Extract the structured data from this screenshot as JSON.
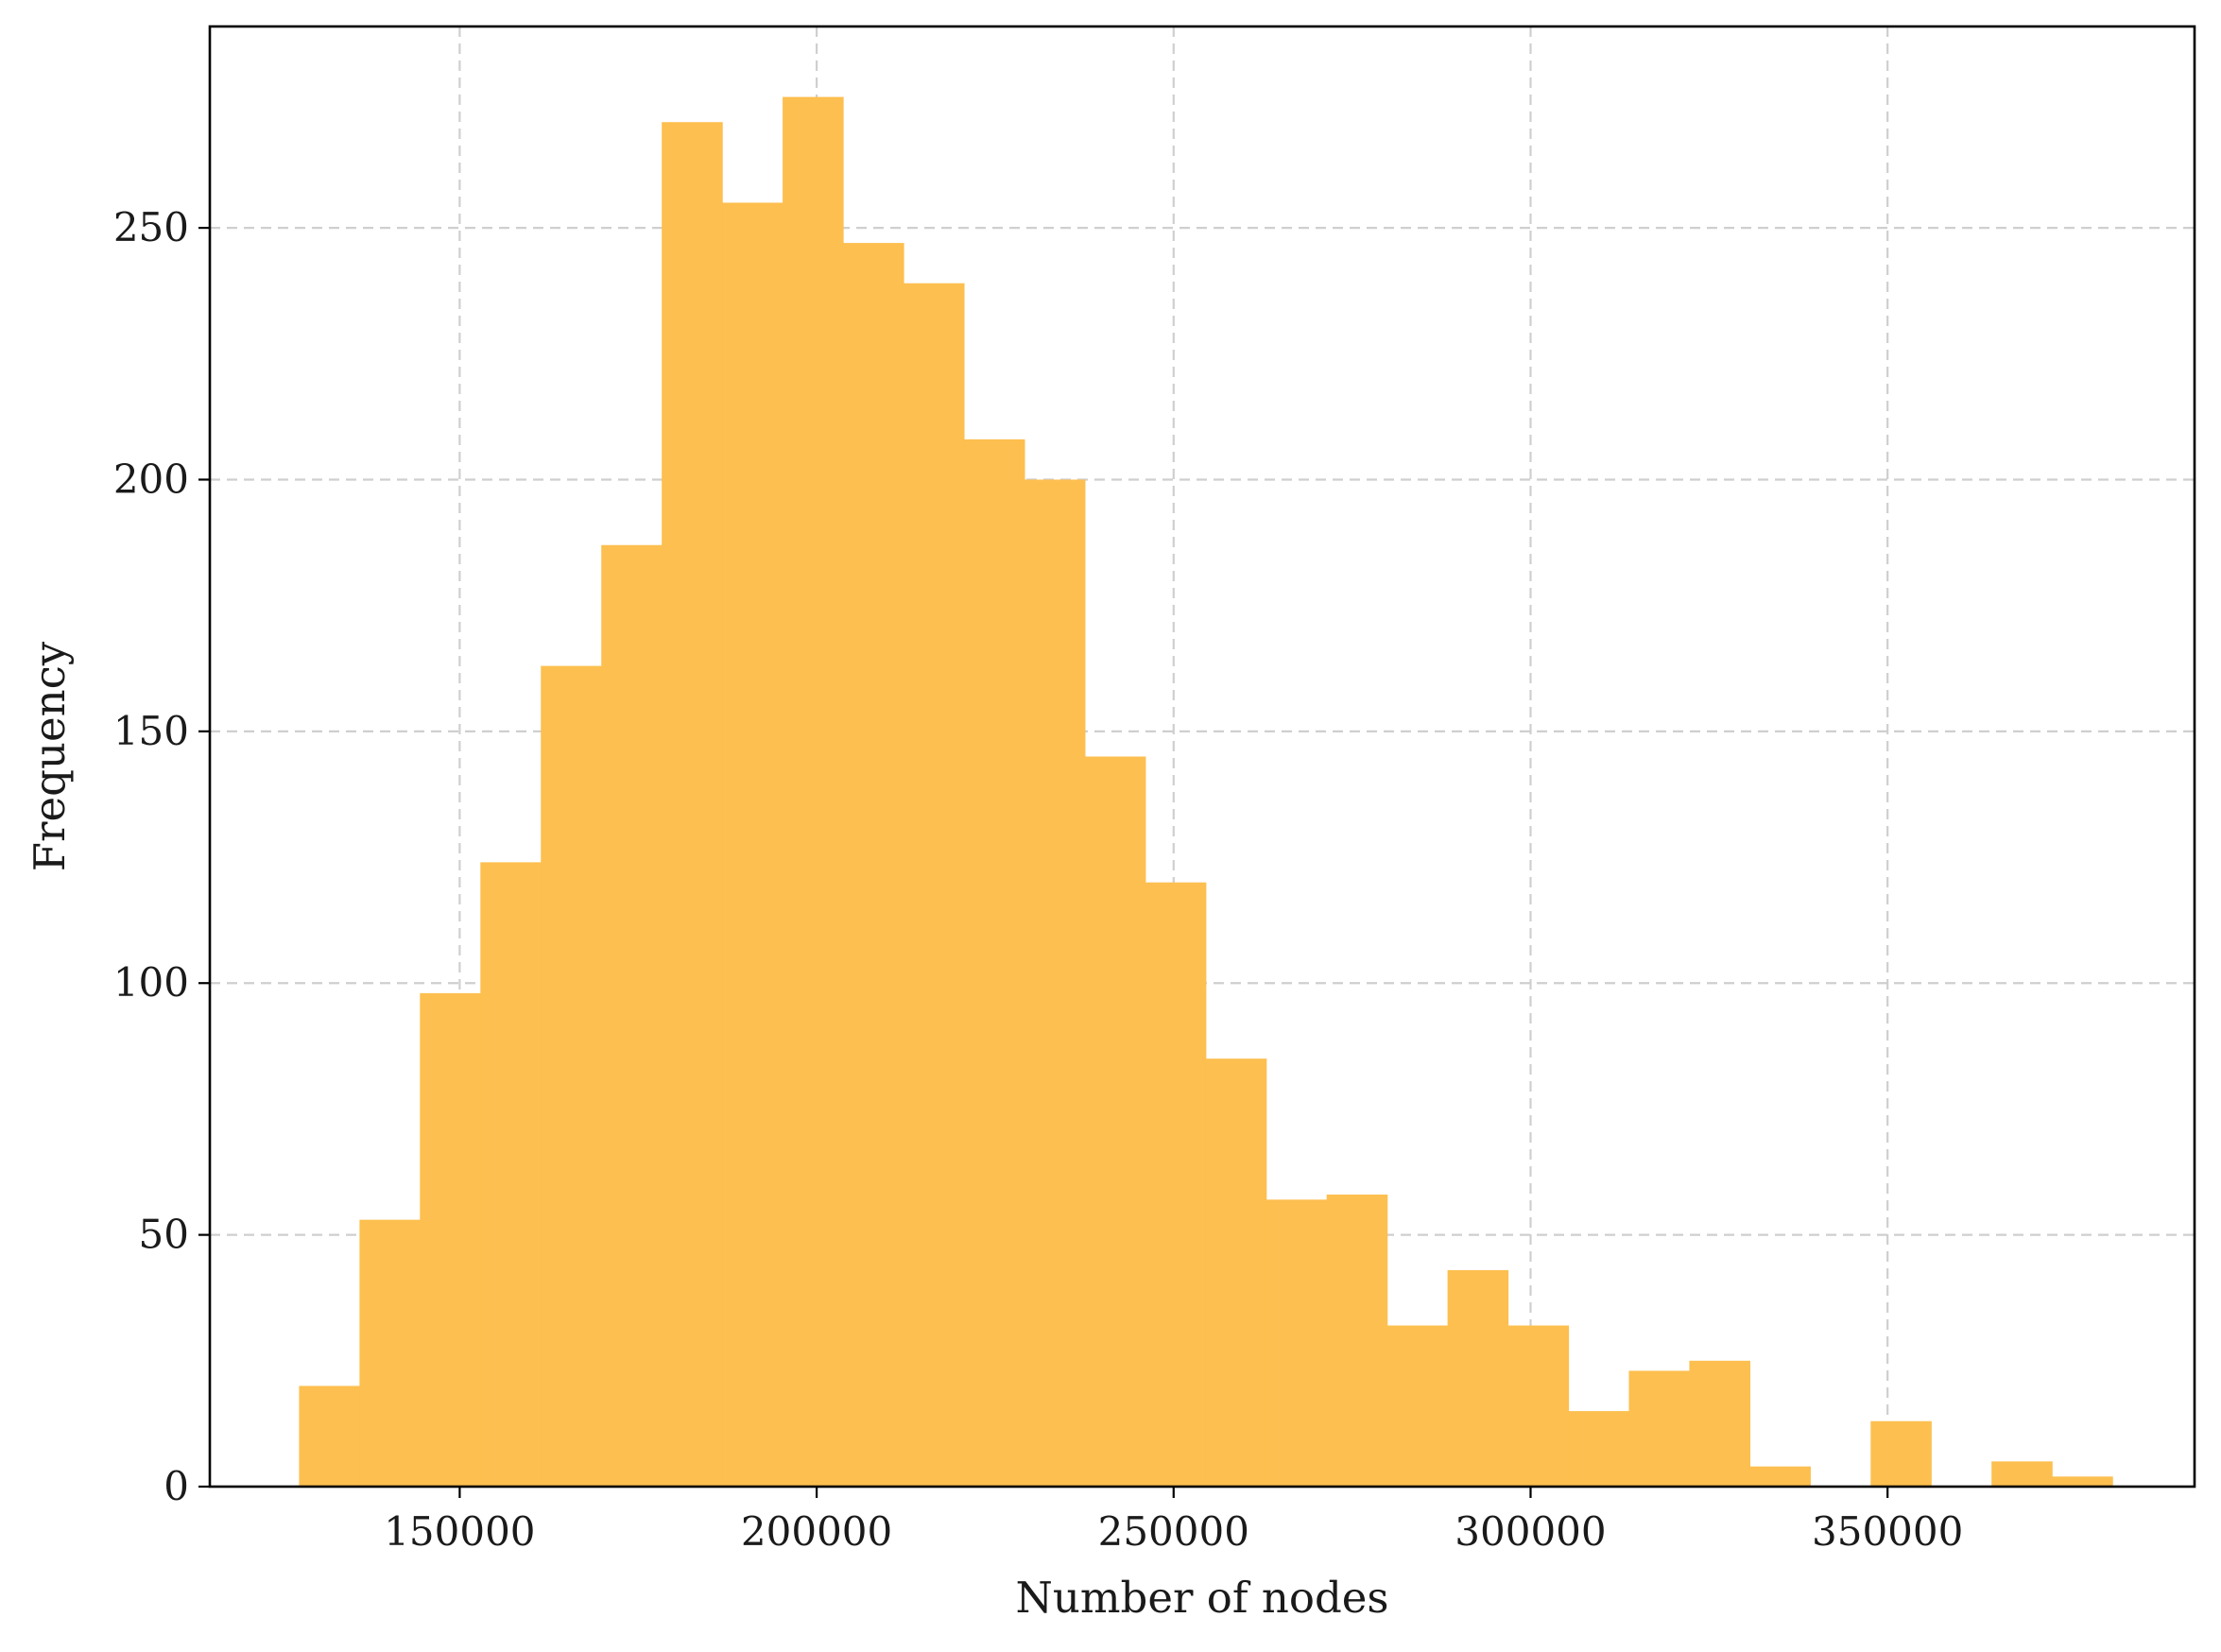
{
  "chart_data": {
    "type": "bar",
    "subtype": "histogram",
    "title": "",
    "xlabel": "Number of nodes",
    "ylabel": "Frequency",
    "xlim": [
      115000,
      393000
    ],
    "ylim": [
      0,
      290
    ],
    "xticks": [
      150000,
      200000,
      250000,
      300000,
      350000
    ],
    "yticks": [
      0,
      50,
      100,
      150,
      200,
      250
    ],
    "grid": true,
    "bar_color": "#FDBF4F",
    "series": [
      {
        "bins": [
          {
            "x0": 127500,
            "x1": 135967,
            "count": 20
          },
          {
            "x0": 135967,
            "x1": 144433,
            "count": 53
          },
          {
            "x0": 144433,
            "x1": 152900,
            "count": 98
          },
          {
            "x0": 152900,
            "x1": 161367,
            "count": 124
          },
          {
            "x0": 161367,
            "x1": 169833,
            "count": 163
          },
          {
            "x0": 169833,
            "x1": 178300,
            "count": 187
          },
          {
            "x0": 178300,
            "x1": 186767,
            "count": 271
          },
          {
            "x0": 186767,
            "x1": 195233,
            "count": 255
          },
          {
            "x0": 195233,
            "x1": 203700,
            "count": 276
          },
          {
            "x0": 203700,
            "x1": 212167,
            "count": 247
          },
          {
            "x0": 212167,
            "x1": 220633,
            "count": 239
          },
          {
            "x0": 220633,
            "x1": 229100,
            "count": 208
          },
          {
            "x0": 229100,
            "x1": 237567,
            "count": 200
          },
          {
            "x0": 237567,
            "x1": 246033,
            "count": 145
          },
          {
            "x0": 246033,
            "x1": 254500,
            "count": 120
          },
          {
            "x0": 254500,
            "x1": 262967,
            "count": 85
          },
          {
            "x0": 262967,
            "x1": 271433,
            "count": 57
          },
          {
            "x0": 271433,
            "x1": 279900,
            "count": 58
          },
          {
            "x0": 279900,
            "x1": 288367,
            "count": 32
          },
          {
            "x0": 288367,
            "x1": 296833,
            "count": 43
          },
          {
            "x0": 296833,
            "x1": 305300,
            "count": 32
          },
          {
            "x0": 305300,
            "x1": 313767,
            "count": 15
          },
          {
            "x0": 313767,
            "x1": 322233,
            "count": 23
          },
          {
            "x0": 322233,
            "x1": 330700,
            "count": 25
          },
          {
            "x0": 330700,
            "x1": 339167,
            "count": 4
          },
          {
            "x0": 339167,
            "x1": 347633,
            "count": 0
          },
          {
            "x0": 347633,
            "x1": 356100,
            "count": 13
          },
          {
            "x0": 356100,
            "x1": 364567,
            "count": 0
          },
          {
            "x0": 364567,
            "x1": 373033,
            "count": 5
          },
          {
            "x0": 373033,
            "x1": 381500,
            "count": 2
          }
        ]
      }
    ]
  }
}
